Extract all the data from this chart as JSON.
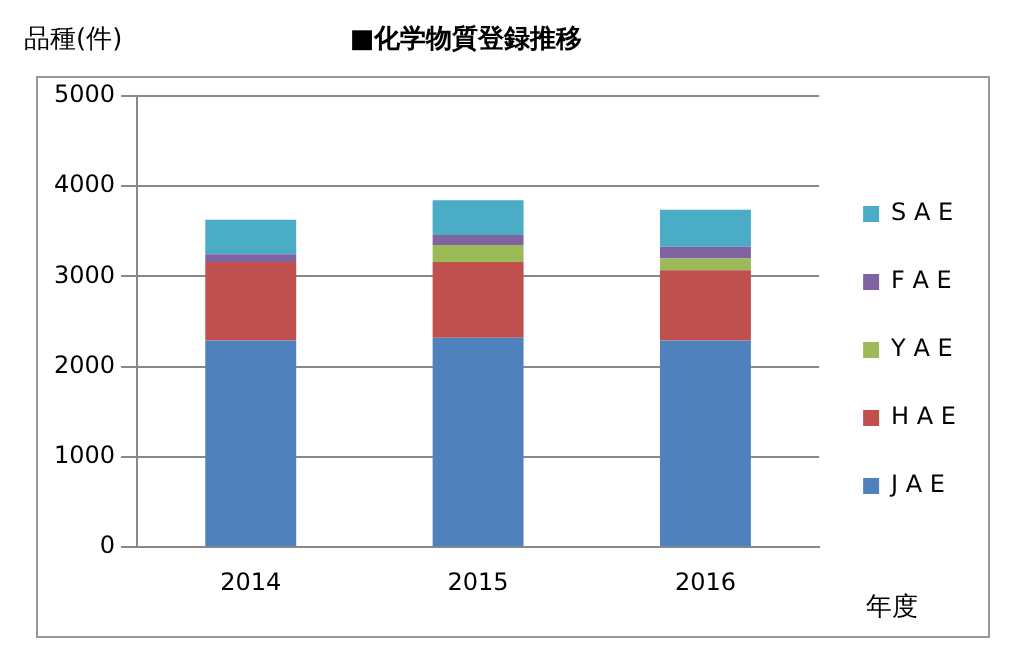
{
  "chart_data": {
    "type": "bar",
    "title": "■化学物質登録推移",
    "ylabel": "品種(件)",
    "xlabel": "年度",
    "categories": [
      "2014",
      "2015",
      "2016"
    ],
    "stacked": true,
    "series": [
      {
        "name": "J A E",
        "color": "#4f81bd",
        "values": [
          2290,
          2320,
          2290
        ]
      },
      {
        "name": "H A E",
        "color": "#c0504d",
        "values": [
          870,
          840,
          780
        ]
      },
      {
        "name": "Y A E",
        "color": "#9bbb59",
        "values": [
          0,
          190,
          130
        ]
      },
      {
        "name": "F A E",
        "color": "#8064a2",
        "values": [
          85,
          110,
          130
        ]
      },
      {
        "name": "S A E",
        "color": "#4bacc6",
        "values": [
          385,
          385,
          410
        ]
      }
    ],
    "ylim": [
      0,
      5000
    ],
    "yticks": [
      0,
      1000,
      2000,
      3000,
      4000,
      5000
    ],
    "grid": "y",
    "legend": "right"
  }
}
